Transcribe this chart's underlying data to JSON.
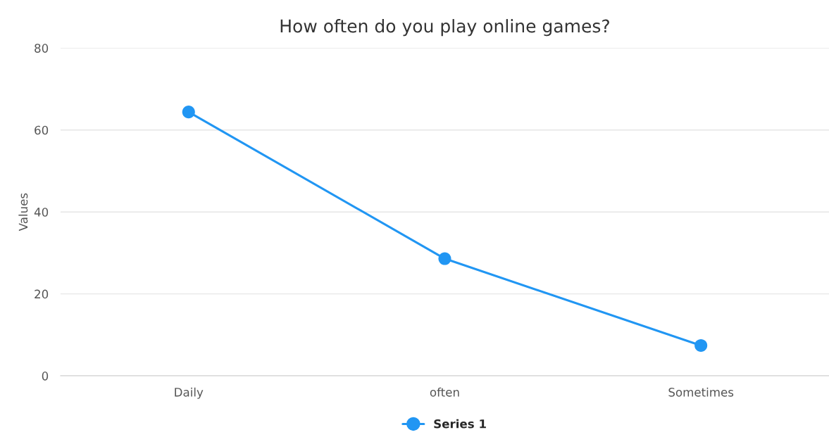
{
  "chart_data": {
    "type": "line",
    "title": "How often do you play online games?",
    "ylabel": "Values",
    "categories": [
      "Daily",
      "often",
      "Sometimes"
    ],
    "series": [
      {
        "name": "Series 1",
        "color": "#2196f3",
        "values": [
          64.4,
          28.6,
          7.4
        ]
      }
    ],
    "ylim": [
      0,
      80
    ],
    "yticks": [
      0,
      20,
      40,
      60,
      80
    ],
    "grid": "y",
    "legend": "bottom",
    "marker": "circle",
    "line_style": "solid"
  }
}
